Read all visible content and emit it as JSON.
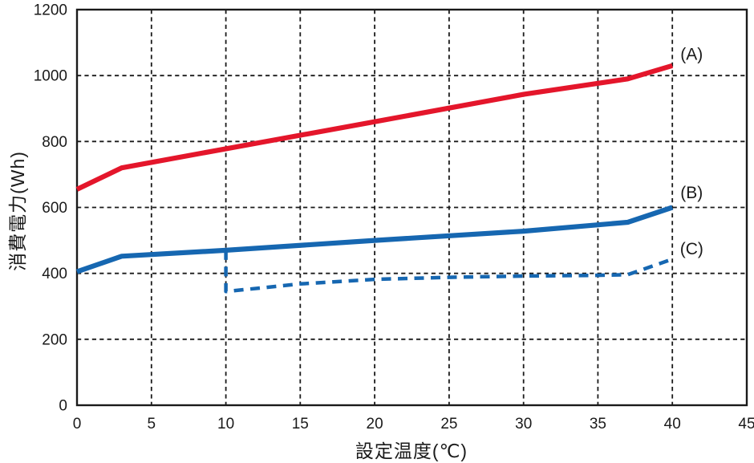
{
  "chart_data": {
    "type": "line",
    "title": "",
    "xlabel": "設定温度(℃)",
    "ylabel": "消費電力(Wh)",
    "xlim": [
      0,
      45
    ],
    "ylim": [
      0,
      1200
    ],
    "xticks": [
      0,
      5,
      10,
      15,
      20,
      25,
      30,
      35,
      40,
      45
    ],
    "yticks": [
      0,
      200,
      400,
      600,
      800,
      1000,
      1200
    ],
    "grid": true,
    "grid_style": "dashed",
    "legend_position": "inline-right-labels",
    "axis_color": "#1a1a1a",
    "series": [
      {
        "name": "(A)",
        "id": "a",
        "color": "#e4162b",
        "style": "solid",
        "points": [
          [
            0,
            655
          ],
          [
            3,
            720
          ],
          [
            10,
            778
          ],
          [
            20,
            860
          ],
          [
            30,
            943
          ],
          [
            37,
            990
          ],
          [
            40,
            1030
          ]
        ],
        "label_at": [
          41.3,
          1065
        ]
      },
      {
        "name": "(B)",
        "id": "b",
        "color": "#1667b1",
        "style": "solid",
        "points": [
          [
            0,
            405
          ],
          [
            3,
            452
          ],
          [
            10,
            470
          ],
          [
            20,
            500
          ],
          [
            30,
            528
          ],
          [
            37,
            555
          ],
          [
            40,
            600
          ]
        ],
        "label_at": [
          41.3,
          645
        ]
      },
      {
        "name": "(C)",
        "id": "c",
        "color": "#1667b1",
        "style": "dashed",
        "points": [
          [
            10,
            470
          ],
          [
            10,
            345
          ],
          [
            15,
            368
          ],
          [
            20,
            382
          ],
          [
            25,
            388
          ],
          [
            30,
            392
          ],
          [
            35,
            394
          ],
          [
            37,
            396
          ],
          [
            40,
            443
          ]
        ],
        "label_at": [
          41.3,
          475
        ]
      }
    ]
  }
}
